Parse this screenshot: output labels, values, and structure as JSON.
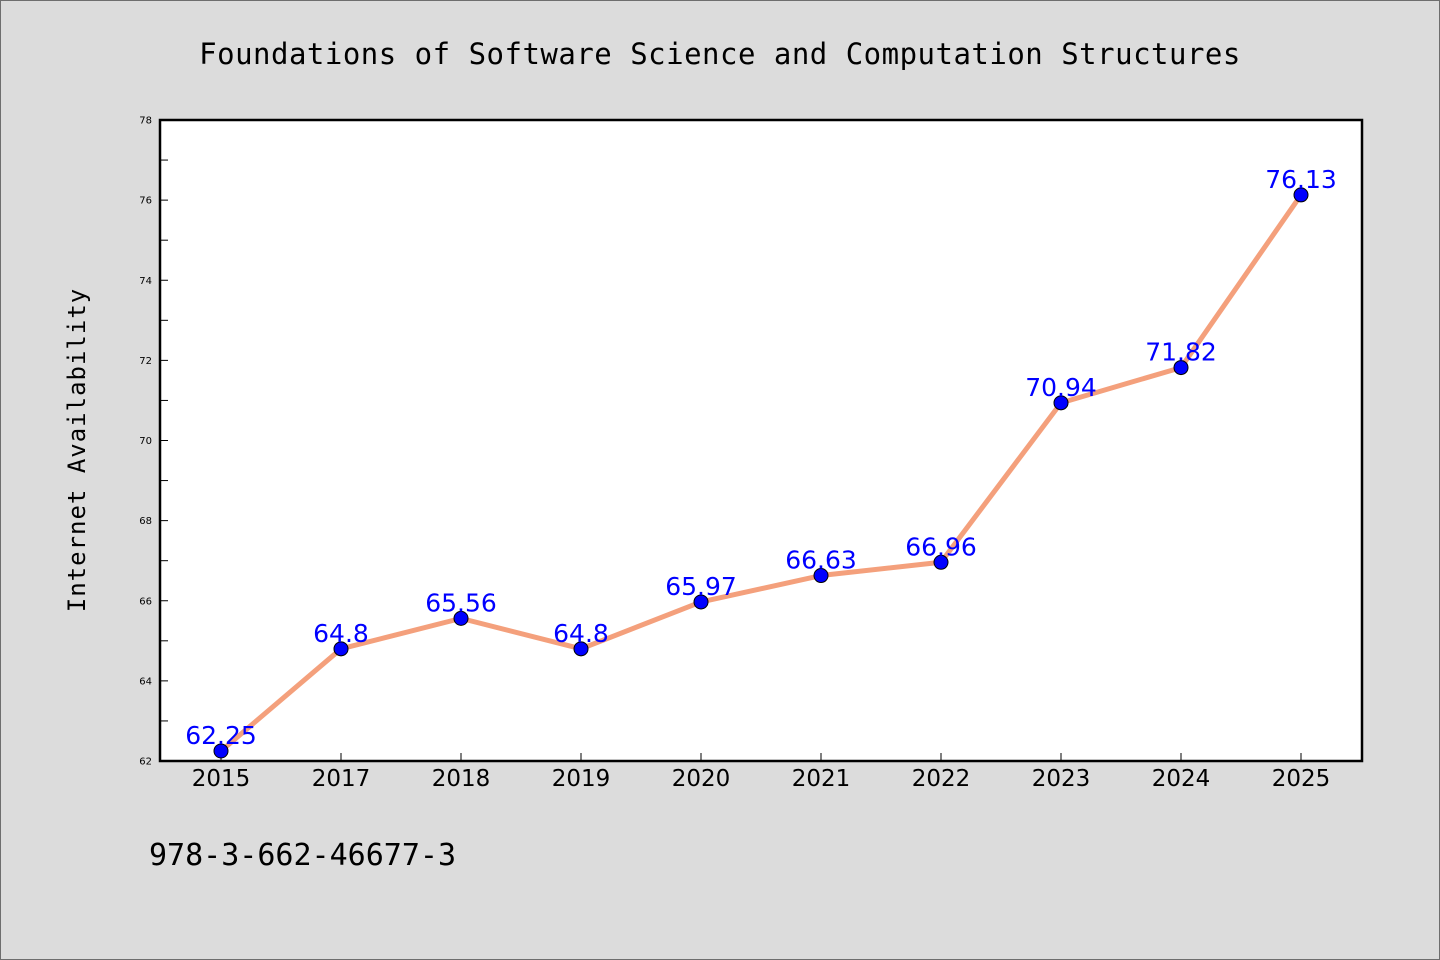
{
  "chart_data": {
    "type": "line",
    "title": "Foundations of Software Science and Computation Structures",
    "xlabel": "",
    "ylabel": "Internet Availability",
    "categories": [
      "2015",
      "2017",
      "2018",
      "2019",
      "2020",
      "2021",
      "2022",
      "2023",
      "2024",
      "2025"
    ],
    "series": [
      {
        "values": [
          62.25,
          64.8,
          65.56,
          64.8,
          65.97,
          66.63,
          66.96,
          70.94,
          71.82,
          76.13
        ]
      }
    ],
    "data_labels": [
      "62.25",
      "64.8",
      "65.56",
      "64.8",
      "65.97",
      "66.63",
      "66.96",
      "70.94",
      "71.82",
      "76.13"
    ],
    "ylim": [
      62,
      78
    ],
    "yticks": [
      62,
      64,
      66,
      68,
      70,
      72,
      74,
      76,
      78
    ],
    "grid": false,
    "legend": "none",
    "colors": {
      "line": "#f4a07c",
      "marker": "#0000ff",
      "label": "#0000ff",
      "background": "#dcdcdc",
      "plot_background": "#ffffff"
    }
  },
  "footer": {
    "isbn": "978-3-662-46677-3"
  }
}
